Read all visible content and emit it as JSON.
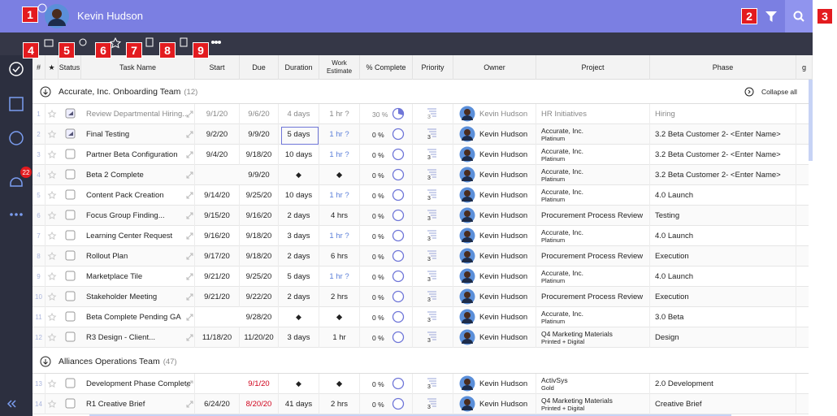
{
  "header": {
    "name": "Kevin Hudson"
  },
  "badges": [
    "1",
    "2",
    "3",
    "4",
    "5",
    "6",
    "7",
    "8",
    "9"
  ],
  "sidebar": {
    "notifications": "22"
  },
  "columns": [
    "#",
    "★",
    "Status",
    "Task Name",
    "Start",
    "Due",
    "Duration",
    "Work Estimate",
    "% Complete",
    "Priority",
    "Owner",
    "Project",
    "Phase",
    "g"
  ],
  "collapse_all": "Collapse all",
  "groups": [
    {
      "name": "Accurate, Inc. Onboarding Team",
      "count": "(12)",
      "rows": [
        {
          "id": "1",
          "done": true,
          "task": "Review Departmental Hiring...",
          "start": "9/1/20",
          "due": "9/6/20",
          "duration": "4 days",
          "work": "1 hr ?",
          "pct": "30 %",
          "priority": "3",
          "owner": "Kevin Hudson",
          "project": [
            "HR Initiatives"
          ],
          "phase": "Hiring"
        },
        {
          "id": "2",
          "done": true,
          "task": "Final Testing",
          "start": "9/2/20",
          "due": "9/9/20",
          "duration": "5 days",
          "work": "1 hr ?",
          "pct": "0 %",
          "priority": "3",
          "owner": "Kevin Hudson",
          "project": [
            "Accurate, Inc.",
            "Platinum"
          ],
          "phase": "3.2 Beta Customer 2- <Enter Name>"
        },
        {
          "id": "3",
          "task": "Partner Beta Configuration",
          "start": "9/4/20",
          "due": "9/18/20",
          "duration": "10 days",
          "work": "1 hr ?",
          "pct": "0 %",
          "priority": "3",
          "owner": "Kevin Hudson",
          "project": [
            "Accurate, Inc.",
            "Platinum"
          ],
          "phase": "3.2 Beta Customer 2- <Enter Name>"
        },
        {
          "id": "4",
          "task": "Beta 2 Complete",
          "start": null,
          "due": "9/9/20",
          "duration": "◆",
          "work": "◆",
          "pct": "0 %",
          "priority": "3",
          "owner": "Kevin Hudson",
          "project": [
            "Accurate, Inc.",
            "Platinum"
          ],
          "phase": "3.2 Beta Customer 2- <Enter Name>"
        },
        {
          "id": "5",
          "task": "Content Pack Creation",
          "start": "9/14/20",
          "due": "9/25/20",
          "duration": "10 days",
          "work": "1 hr ?",
          "pct": "0 %",
          "priority": "3",
          "owner": "Kevin Hudson",
          "project": [
            "Accurate, Inc.",
            "Platinum"
          ],
          "phase": "4.0 Launch"
        },
        {
          "id": "6",
          "task": "Focus Group Finding...",
          "start": "9/15/20",
          "due": "9/16/20",
          "duration": "2 days",
          "work": "4 hrs",
          "pct": "0 %",
          "priority": "3",
          "owner": "Kevin Hudson",
          "project": [
            "Procurement Process Review"
          ],
          "phase": "Testing"
        },
        {
          "id": "7",
          "task": "Learning Center Request",
          "start": "9/16/20",
          "due": "9/18/20",
          "duration": "3 days",
          "work": "1 hr ?",
          "pct": "0 %",
          "priority": "3",
          "owner": "Kevin Hudson",
          "project": [
            "Accurate, Inc.",
            "Platinum"
          ],
          "phase": "4.0 Launch"
        },
        {
          "id": "8",
          "task": "Rollout Plan",
          "start": "9/17/20",
          "due": "9/18/20",
          "duration": "2 days",
          "work": "6 hrs",
          "pct": "0 %",
          "priority": "3",
          "owner": "Kevin Hudson",
          "project": [
            "Procurement Process Review"
          ],
          "phase": "Execution"
        },
        {
          "id": "9",
          "task": "Marketplace Tile",
          "start": "9/21/20",
          "due": "9/25/20",
          "duration": "5 days",
          "work": "1 hr ?",
          "pct": "0 %",
          "priority": "3",
          "owner": "Kevin Hudson",
          "project": [
            "Accurate, Inc.",
            "Platinum"
          ],
          "phase": "4.0 Launch"
        },
        {
          "id": "10",
          "task": "Stakeholder Meeting",
          "start": "9/21/20",
          "due": "9/22/20",
          "duration": "2 days",
          "work": "2 hrs",
          "pct": "0 %",
          "priority": "3",
          "owner": "Kevin Hudson",
          "project": [
            "Procurement Process Review"
          ],
          "phase": "Execution"
        },
        {
          "id": "11",
          "task": "Beta Complete Pending GA",
          "start": null,
          "due": "9/28/20",
          "duration": "◆",
          "work": "◆",
          "pct": "0 %",
          "priority": "3",
          "owner": "Kevin Hudson",
          "project": [
            "Accurate, Inc.",
            "Platinum"
          ],
          "phase": "3.0 Beta"
        },
        {
          "id": "12",
          "task": "R3 Design - Client...",
          "start": "11/18/20",
          "due": "11/20/20",
          "duration": "3 days",
          "work": "1 hr",
          "pct": "0 %",
          "priority": "3",
          "owner": "Kevin Hudson",
          "project": [
            "Q4 Marketing Materials",
            "Printed + Digital"
          ],
          "phase": "Design"
        }
      ]
    },
    {
      "name": "Alliances Operations Team",
      "count": "(47)",
      "rows": [
        {
          "id": "13",
          "task": "Development Phase Complete",
          "start": null,
          "due": "9/1/20",
          "late": true,
          "duration": "◆",
          "work": "◆",
          "pct": "0 %",
          "priority": "3",
          "owner": "Kevin Hudson",
          "project": [
            "ActivSys",
            "Gold"
          ],
          "phase": "2.0 Development"
        },
        {
          "id": "14",
          "task": "R1 Creative Brief",
          "start": "6/24/20",
          "due": "8/20/20",
          "late": true,
          "duration": "41 days",
          "work": "2 hrs",
          "pct": "0 %",
          "priority": "3",
          "owner": "Kevin Hudson",
          "project": [
            "Q4 Marketing Materials",
            "Printed + Digital"
          ],
          "phase": "Creative Brief"
        }
      ]
    }
  ]
}
